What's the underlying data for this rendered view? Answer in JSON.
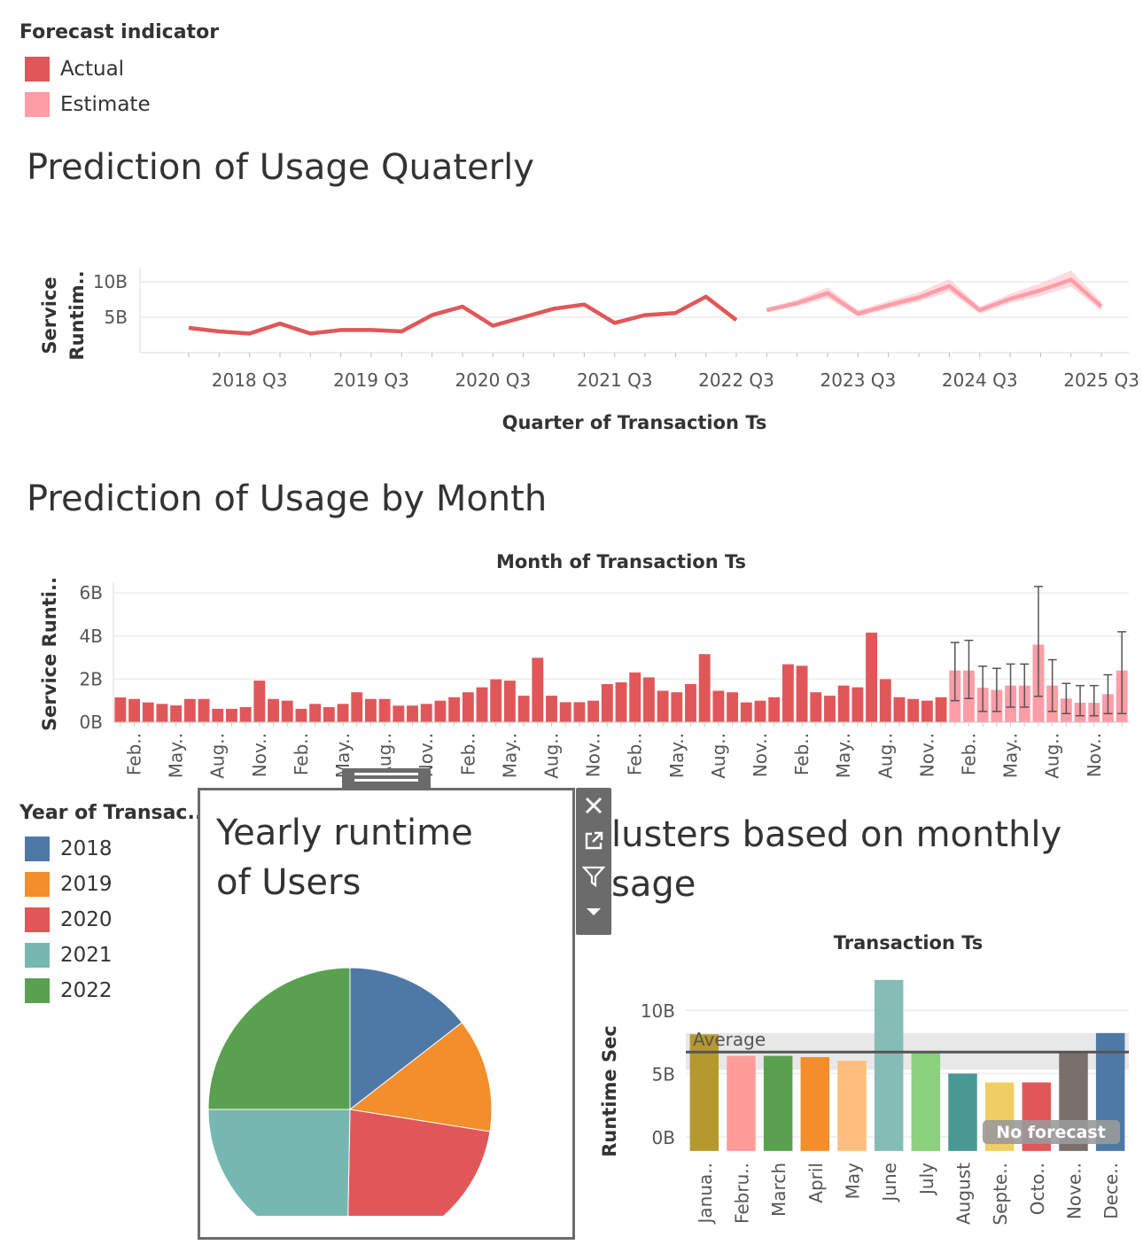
{
  "forecast_legend": {
    "title": "Forecast indicator",
    "items": [
      {
        "label": "Actual",
        "color": "#e15759"
      },
      {
        "label": "Estimate",
        "color": "#ff9da7"
      }
    ]
  },
  "year_legend": {
    "title": "Year of Transac..",
    "items": [
      {
        "label": "2018",
        "color": "#4e79a7"
      },
      {
        "label": "2019",
        "color": "#f28e2b"
      },
      {
        "label": "2020",
        "color": "#e15759"
      },
      {
        "label": "2021",
        "color": "#76b7b2"
      },
      {
        "label": "2022",
        "color": "#59a14f"
      }
    ]
  },
  "quarterly": {
    "title": "Prediction of Usage Quaterly"
  },
  "monthly": {
    "title": "Prediction of Usage by Month"
  },
  "pie": {
    "title_line1": "Yearly runtime",
    "title_line2": "of Users"
  },
  "clusters": {
    "title_line1": "lusters based on monthly",
    "title_line2": "sage",
    "average_label": "Average",
    "no_forecast_label": "No forecast"
  },
  "toolbar": {
    "close_icon": "close-icon",
    "open_icon": "external-link-icon",
    "filter_icon": "filter-icon",
    "menu_icon": "dropdown-icon"
  },
  "chart_data": [
    {
      "id": "quarterly",
      "type": "line",
      "title": "Prediction of Usage Quaterly",
      "xlabel": "Quarter of Transaction Ts",
      "ylabel": "Service Runtim..",
      "ylim": [
        0,
        12
      ],
      "yticks": [
        {
          "v": 5,
          "label": "5B"
        },
        {
          "v": 10,
          "label": "10B"
        }
      ],
      "xticks": [
        "2018 Q3",
        "2019 Q3",
        "2020 Q3",
        "2021 Q3",
        "2022 Q3",
        "2023 Q3",
        "2024 Q3",
        "2025 Q3"
      ],
      "series": [
        {
          "name": "Actual",
          "color": "#e15759",
          "values": [
            3.5,
            3.0,
            2.7,
            4.1,
            2.7,
            3.2,
            3.2,
            3.0,
            5.3,
            6.5,
            3.8,
            5.0,
            6.2,
            6.8,
            4.2,
            5.3,
            5.6,
            7.9,
            4.6
          ]
        },
        {
          "name": "Estimate",
          "color": "#ff9da7",
          "values": [
            6.0,
            7.0,
            8.4,
            5.5,
            6.7,
            7.8,
            9.4,
            6.0,
            7.6,
            8.8,
            10.3,
            6.5
          ],
          "band": [
            [
              5.7,
              6.3
            ],
            [
              6.6,
              7.5
            ],
            [
              7.7,
              9.2
            ],
            [
              5.1,
              6.0
            ],
            [
              6.2,
              7.3
            ],
            [
              7.2,
              8.5
            ],
            [
              8.6,
              10.4
            ],
            [
              5.5,
              6.5
            ],
            [
              7.0,
              8.3
            ],
            [
              8.0,
              9.8
            ],
            [
              9.3,
              11.6
            ],
            [
              5.9,
              7.2
            ]
          ]
        }
      ]
    },
    {
      "id": "monthly",
      "type": "bar",
      "title": "Prediction of Usage by Month",
      "xlabel": "Month of Transaction Ts",
      "ylabel": "Service Runti..",
      "ylim": [
        0,
        6.5
      ],
      "yticks": [
        {
          "v": 0,
          "label": "0B"
        },
        {
          "v": 2,
          "label": "2B"
        },
        {
          "v": 4,
          "label": "4B"
        },
        {
          "v": 6,
          "label": "6B"
        }
      ],
      "x_labels": [
        "Feb..",
        "May..",
        "Aug..",
        "Nov..",
        "Feb..",
        "May..",
        "Aug..",
        "Nov..",
        "Feb..",
        "May..",
        "Aug..",
        "Nov..",
        "Feb..",
        "May..",
        "Aug..",
        "Nov..",
        "Feb..",
        "May..",
        "Aug..",
        "Nov..",
        "Feb..",
        "May..",
        "Aug..",
        "Nov.."
      ],
      "actual_color": "#e15759",
      "estimate_color": "#ff9da7",
      "actual": [
        1.15,
        1.08,
        0.92,
        0.85,
        0.78,
        1.08,
        1.08,
        0.62,
        0.62,
        0.7,
        1.93,
        1.08,
        1.0,
        0.62,
        0.85,
        0.7,
        0.85,
        1.39,
        1.08,
        1.08,
        0.77,
        0.77,
        0.85,
        1.0,
        1.16,
        1.39,
        1.62,
        1.99,
        1.93,
        1.23,
        2.99,
        1.23,
        0.93,
        0.93,
        1.0,
        1.77,
        1.85,
        2.31,
        2.08,
        1.46,
        1.39,
        1.77,
        3.16,
        1.46,
        1.39,
        0.92,
        1.0,
        1.16,
        2.69,
        2.62,
        1.39,
        1.23,
        1.7,
        1.62,
        4.16,
        2.0,
        1.16,
        1.08,
        1.0,
        1.16
      ],
      "estimate": [
        2.4,
        2.4,
        1.6,
        1.5,
        1.7,
        1.7,
        3.6,
        1.7,
        1.1,
        0.9,
        0.9,
        1.3,
        2.4
      ],
      "estimate_err": [
        [
          1.0,
          3.7
        ],
        [
          1.1,
          3.8
        ],
        [
          0.5,
          2.6
        ],
        [
          0.5,
          2.5
        ],
        [
          0.7,
          2.7
        ],
        [
          0.7,
          2.7
        ],
        [
          1.2,
          6.3
        ],
        [
          0.5,
          2.9
        ],
        [
          0.4,
          1.8
        ],
        [
          0.3,
          1.7
        ],
        [
          0.3,
          1.7
        ],
        [
          0.4,
          2.2
        ],
        [
          0.4,
          4.2
        ]
      ]
    },
    {
      "id": "pie",
      "type": "pie",
      "title": "Yearly runtime of Users",
      "slices": [
        {
          "label": "2018",
          "value": 14.5,
          "color": "#4e79a7"
        },
        {
          "label": "2019",
          "value": 13.0,
          "color": "#f28e2b"
        },
        {
          "label": "2020",
          "value": 22.8,
          "color": "#e15759"
        },
        {
          "label": "2021",
          "value": 24.7,
          "color": "#76b7b2"
        },
        {
          "label": "2022",
          "value": 25.0,
          "color": "#59a14f"
        }
      ]
    },
    {
      "id": "clusters",
      "type": "bar",
      "title": "lusters based on monthly sage",
      "xlabel": "Transaction Ts",
      "ylabel": "Runtime Sec",
      "ylim": [
        -1.2,
        14
      ],
      "yticks": [
        {
          "v": 0,
          "label": "0B"
        },
        {
          "v": 5,
          "label": "5B"
        },
        {
          "v": 10,
          "label": "10B"
        }
      ],
      "average": 6.7,
      "average_band": [
        5.3,
        8.2
      ],
      "categories": [
        "Janua..",
        "Febru..",
        "March",
        "April",
        "May",
        "June",
        "July",
        "August",
        "Septe..",
        "Octo..",
        "Nove..",
        "Dece.."
      ],
      "values": [
        8.1,
        6.4,
        6.4,
        6.3,
        6.0,
        12.4,
        6.7,
        5.0,
        4.3,
        4.3,
        6.7,
        8.2
      ],
      "colors": [
        "#b6992d",
        "#ff9d9a",
        "#59a14f",
        "#f28e2b",
        "#ffbe7d",
        "#86bcb6",
        "#8cd17d",
        "#499894",
        "#f1ce63",
        "#e15759",
        "#79706e",
        "#4e79a7"
      ]
    }
  ]
}
